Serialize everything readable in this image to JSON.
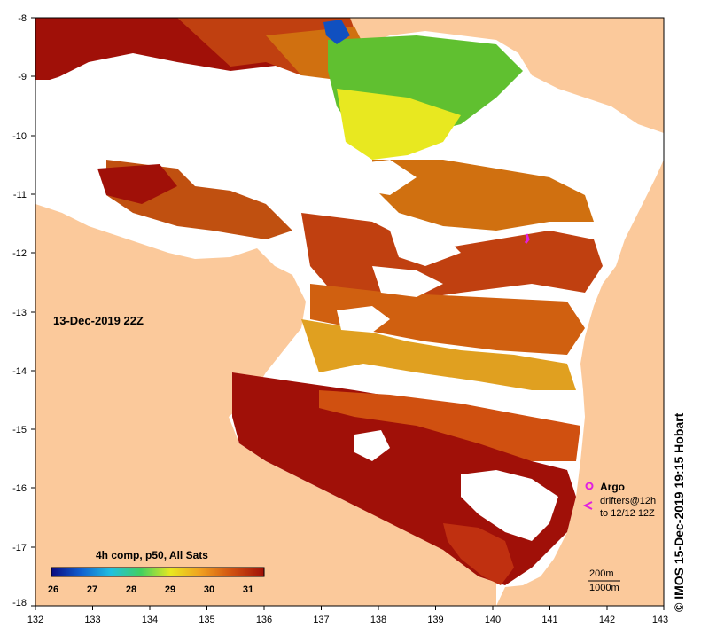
{
  "date_label": "13-Dec-2019 22Z",
  "credit": "© IMOS 15-Dec-2019 19:15 Hobart",
  "colorbar": {
    "title": "4h comp, p50, All Sats",
    "ticks": [
      "26",
      "27",
      "28",
      "29",
      "30",
      "31"
    ],
    "colors": [
      "#0b0b80",
      "#1060d0",
      "#20c0e0",
      "#40d060",
      "#e8e820",
      "#f0a020",
      "#d05010",
      "#a01008"
    ]
  },
  "axes": {
    "x_ticks": [
      "132",
      "133",
      "134",
      "135",
      "136",
      "137",
      "138",
      "139",
      "140",
      "141",
      "142",
      "143"
    ],
    "y_ticks": [
      "-8",
      "-9",
      "-10",
      "-11",
      "-12",
      "-13",
      "-14",
      "-15",
      "-16",
      "-17",
      "-18"
    ]
  },
  "legend": {
    "argo": "Argo",
    "drifters_line1": "drifters@12h",
    "drifters_line2": "to 12/12 12Z"
  },
  "bathymetry": {
    "contour_1": "200m",
    "contour_2": "1000m"
  },
  "colors": {
    "land": "#fbc99b",
    "no_data": "#ffffff",
    "argo_marker": "#e020e0"
  }
}
